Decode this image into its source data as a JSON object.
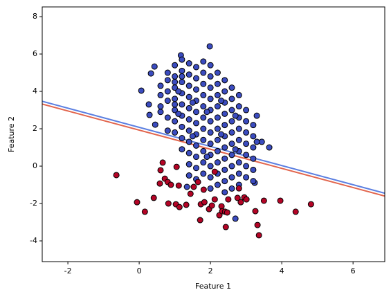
{
  "chart_data": {
    "type": "scatter",
    "xlabel": "Feature 1",
    "ylabel": "Feature 2",
    "xlim": [
      -2.72,
      6.89
    ],
    "ylim": [
      -5.11,
      8.52
    ],
    "xticks": [
      -2,
      0,
      2,
      4,
      6
    ],
    "yticks": [
      -4,
      -2,
      0,
      2,
      4,
      6,
      8
    ],
    "lines": [
      {
        "color": "#5b7fe1",
        "x": [
          -2.72,
          6.89
        ],
        "y": [
          3.47,
          -1.45
        ]
      },
      {
        "color": "#e2654d",
        "x": [
          -2.72,
          6.89
        ],
        "y": [
          3.32,
          -1.6
        ]
      }
    ],
    "series": [
      {
        "color": "#3b4cc0",
        "x": [
          0.06,
          0.33,
          0.27,
          0.43,
          1.17,
          1.98,
          3.65,
          3.44,
          2.7,
          3.24,
          0.29,
          0.45,
          1.34,
          0.6,
          0.6,
          0.6,
          0.6,
          0.8,
          0.8,
          0.8,
          0.8,
          0.8,
          0.8,
          1.0,
          1.0,
          1.0,
          1.0,
          1.0,
          1.0,
          1.0,
          1.0,
          1.0,
          1.2,
          1.2,
          1.2,
          1.2,
          1.2,
          1.2,
          1.2,
          1.2,
          1.2,
          1.2,
          1.4,
          1.4,
          1.4,
          1.4,
          1.4,
          1.4,
          1.4,
          1.4,
          1.4,
          1.4,
          1.4,
          1.6,
          1.6,
          1.6,
          1.6,
          1.6,
          1.6,
          1.6,
          1.6,
          1.6,
          1.6,
          1.6,
          1.8,
          1.8,
          1.8,
          1.8,
          1.8,
          1.8,
          1.8,
          1.8,
          1.8,
          1.8,
          1.8,
          2.0,
          2.0,
          2.0,
          2.0,
          2.0,
          2.0,
          2.0,
          2.0,
          2.0,
          2.0,
          2.0,
          2.0,
          2.2,
          2.2,
          2.2,
          2.2,
          2.2,
          2.2,
          2.2,
          2.2,
          2.2,
          2.2,
          2.2,
          2.4,
          2.4,
          2.4,
          2.4,
          2.4,
          2.4,
          2.4,
          2.4,
          2.4,
          2.4,
          2.4,
          2.6,
          2.6,
          2.6,
          2.6,
          2.6,
          2.6,
          2.6,
          2.6,
          2.6,
          2.6,
          2.8,
          2.8,
          2.8,
          2.8,
          2.8,
          2.8,
          2.8,
          2.8,
          2.8,
          3.0,
          3.0,
          3.0,
          3.0,
          3.0,
          3.0,
          3.0,
          3.2,
          3.2,
          3.2,
          3.2,
          3.2,
          3.2,
          1.1,
          1.1,
          1.5,
          1.5,
          1.9,
          1.9,
          2.3,
          2.3,
          2.7,
          2.7,
          3.3,
          3.3
        ],
        "y": [
          4.04,
          4.96,
          3.3,
          5.33,
          5.93,
          6.41,
          1.0,
          1.3,
          -2.81,
          -0.89,
          2.74,
          2.22,
          -1.11,
          3.8,
          4.3,
          2.9,
          3.2,
          4.6,
          3.5,
          2.6,
          4.0,
          1.9,
          5.0,
          5.4,
          4.8,
          4.2,
          3.6,
          3.0,
          2.4,
          1.8,
          4.5,
          3.3,
          5.7,
          5.1,
          4.5,
          3.9,
          3.3,
          2.7,
          2.1,
          1.5,
          0.9,
          4.8,
          5.5,
          4.9,
          4.3,
          3.7,
          3.1,
          2.5,
          1.9,
          1.3,
          0.7,
          0.1,
          -0.5,
          5.3,
          4.7,
          4.1,
          3.5,
          2.9,
          2.3,
          1.7,
          1.1,
          0.5,
          -0.1,
          -0.7,
          5.6,
          5.0,
          4.4,
          3.8,
          3.2,
          2.6,
          2.0,
          1.4,
          0.8,
          0.2,
          -0.4,
          5.4,
          4.8,
          4.2,
          3.6,
          3.0,
          2.4,
          1.8,
          1.2,
          0.6,
          0.0,
          -0.6,
          -1.2,
          5.0,
          4.4,
          3.8,
          3.2,
          2.6,
          2.0,
          1.4,
          0.8,
          0.2,
          -0.4,
          -1.0,
          4.6,
          4.0,
          3.4,
          2.8,
          2.2,
          1.6,
          1.0,
          0.4,
          -0.2,
          -0.8,
          -1.4,
          4.2,
          3.6,
          3.0,
          2.4,
          1.8,
          1.2,
          0.6,
          0.0,
          -0.6,
          -1.2,
          3.8,
          3.2,
          2.6,
          2.0,
          1.4,
          0.8,
          0.2,
          -0.4,
          -1.0,
          3.0,
          2.4,
          1.8,
          1.2,
          0.6,
          0.0,
          -0.6,
          2.2,
          1.6,
          1.0,
          0.4,
          -0.2,
          -0.8,
          4.0,
          2.8,
          3.4,
          1.6,
          2.9,
          0.5,
          1.7,
          3.5,
          0.9,
          2.7,
          1.3,
          2.7
        ]
      },
      {
        "color": "#b40426",
        "x": [
          -0.64,
          -0.06,
          0.16,
          0.41,
          0.6,
          0.66,
          0.58,
          0.72,
          0.8,
          0.89,
          0.82,
          1.03,
          1.13,
          1.11,
          1.05,
          1.32,
          1.44,
          1.53,
          1.71,
          1.73,
          1.81,
          1.83,
          1.96,
          2.04,
          2.12,
          2.25,
          2.31,
          2.33,
          2.41,
          2.47,
          2.43,
          2.5,
          2.76,
          2.85,
          2.8,
          2.95,
          3.01,
          3.26,
          3.32,
          3.36,
          3.5,
          3.96,
          4.39,
          4.82,
          1.65,
          2.12
        ],
        "y": [
          -0.48,
          -1.93,
          -2.44,
          -1.7,
          -0.22,
          0.19,
          -0.93,
          -0.67,
          -0.85,
          -1.0,
          -2.0,
          -2.04,
          -2.19,
          -1.04,
          -0.04,
          -2.07,
          -1.48,
          -1.11,
          -2.89,
          -2.04,
          -1.26,
          -1.93,
          -2.3,
          -2.11,
          -1.78,
          -2.63,
          -2.15,
          -2.41,
          -2.44,
          -2.48,
          -3.26,
          -1.78,
          -1.7,
          -1.93,
          -1.19,
          -1.67,
          -1.78,
          -2.41,
          -3.15,
          -3.7,
          -1.85,
          -1.85,
          -2.44,
          -2.04,
          -0.85,
          -0.3
        ]
      }
    ]
  }
}
